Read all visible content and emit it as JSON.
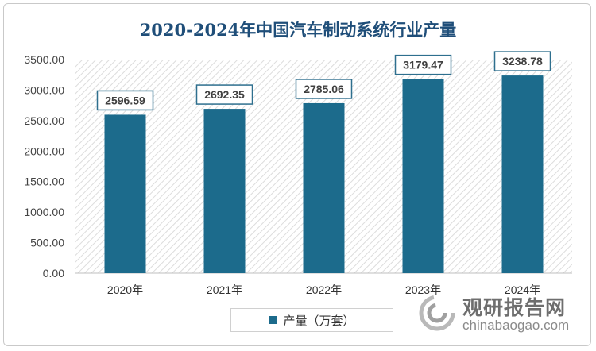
{
  "chart_data": {
    "type": "bar",
    "title": "2020-2024年中国汽车制动系统行业产量",
    "categories": [
      "2020年",
      "2021年",
      "2022年",
      "2023年",
      "2024年"
    ],
    "series": [
      {
        "name": "产量（万套）",
        "values": [
          2596.59,
          2692.35,
          2785.06,
          3179.47,
          3238.78
        ]
      }
    ],
    "data_labels": [
      "2596.59",
      "2692.35",
      "2785.06",
      "3179.47",
      "3238.78"
    ],
    "ylim": [
      0,
      3500
    ],
    "yticks": [
      0,
      500,
      1000,
      1500,
      2000,
      2500,
      3000,
      3500
    ],
    "ytick_labels": [
      "0.00",
      "500.00",
      "1000.00",
      "1500.00",
      "2000.00",
      "2500.00",
      "3000.00",
      "3500.00"
    ],
    "xlabel": "",
    "ylabel": "",
    "legend_position": "bottom",
    "bar_color": "#1c6b8c",
    "label_border_color": "#2e6f8e"
  },
  "watermark": {
    "text_cn": "观研报告网",
    "text_en": "chinabaogao.com"
  }
}
